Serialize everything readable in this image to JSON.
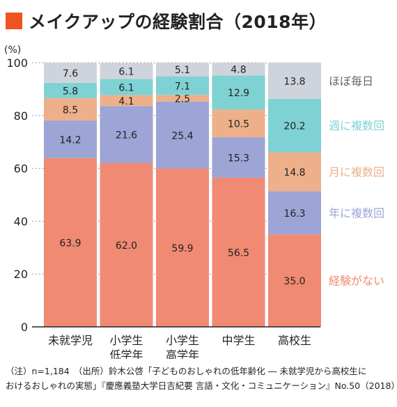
{
  "title": "メイクアップの経験割合（2018年）",
  "colors": {
    "title_square": "#f0541e",
    "none": "#f08a73",
    "year": "#9ca5d6",
    "month": "#edb08a",
    "week": "#7fd2d3",
    "daily": "#cfd4dc"
  },
  "chart_data": {
    "type": "bar",
    "stacked": true,
    "yunit_label": "(%)",
    "ylim": [
      0,
      100
    ],
    "yticks": [
      0,
      20,
      40,
      60,
      80,
      100
    ],
    "grid": true,
    "legend_position": "right",
    "categories": [
      [
        "未就学児"
      ],
      [
        "小学生",
        "低学年"
      ],
      [
        "小学生",
        "高学年"
      ],
      [
        "中学生"
      ],
      [
        "高校生"
      ]
    ],
    "series": [
      {
        "key": "none",
        "name": "経験がない",
        "values": [
          63.9,
          62.0,
          59.9,
          56.5,
          35.0
        ],
        "labels": [
          "63.9",
          "62.0",
          "59.9",
          "56.5",
          "35.0"
        ]
      },
      {
        "key": "year",
        "name": "年に複数回",
        "values": [
          14.2,
          21.6,
          25.4,
          15.3,
          16.3
        ],
        "labels": [
          "14.2",
          "21.6",
          "25.4",
          "15.3",
          "16.3"
        ]
      },
      {
        "key": "month",
        "name": "月に複数回",
        "values": [
          8.5,
          4.1,
          2.5,
          10.5,
          14.8
        ],
        "labels": [
          "8.5",
          "4.1",
          "2.5",
          "10.5",
          "14.8"
        ]
      },
      {
        "key": "week",
        "name": "週に複数回",
        "values": [
          5.8,
          6.1,
          7.1,
          12.9,
          20.2
        ],
        "labels": [
          "5.8",
          "6.1",
          "7.1",
          "12.9",
          "20.2"
        ]
      },
      {
        "key": "daily",
        "name": "ほぼ毎日",
        "values": [
          7.6,
          6.1,
          5.1,
          4.8,
          13.8
        ],
        "labels": [
          "7.6",
          "6.1",
          "5.1",
          "4.8",
          "13.8"
        ]
      }
    ]
  },
  "note": {
    "line1": "（注）n=1,184　（出所）鈴木公啓「子どものおしゃれの低年齢化 ― 未就学児から高校生に",
    "line2": "おけるおしゃれの実態」『慶應義塾大学日吉紀要 言語・文化・コミュニケーション』No.50（2018）"
  }
}
